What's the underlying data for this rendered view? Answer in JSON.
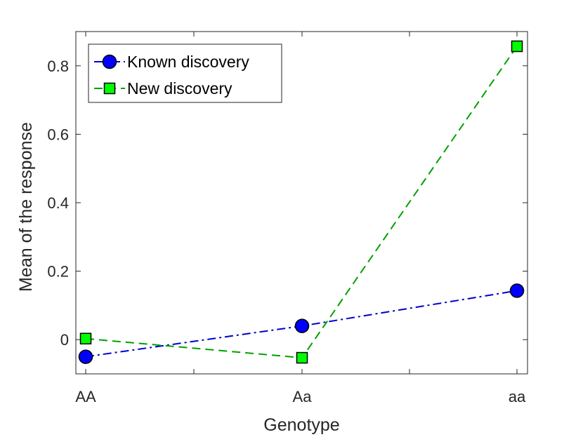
{
  "chart_data": {
    "type": "line",
    "xlabel": "Genotype",
    "ylabel": "Mean of the response",
    "categories": [
      "AA",
      "Aa",
      "aa"
    ],
    "ylim": [
      -0.1,
      0.9
    ],
    "yticks": [
      0,
      0.2,
      0.4,
      0.6,
      0.8
    ],
    "ytick_labels": [
      "0",
      "0.2",
      "0.4",
      "0.6",
      "0.8"
    ],
    "grid": false,
    "legend_position": "top-left",
    "series": [
      {
        "name": "Known discovery",
        "values": [
          -0.05,
          0.04,
          0.143
        ],
        "line_style": "dash-dot",
        "marker": "circle",
        "line_color": "#0000cc",
        "marker_fill": "#0000ff"
      },
      {
        "name": "New discovery",
        "values": [
          0.003,
          -0.053,
          0.857
        ],
        "line_style": "dashed",
        "marker": "square",
        "line_color": "#00a000",
        "marker_fill": "#00ff00"
      }
    ]
  }
}
